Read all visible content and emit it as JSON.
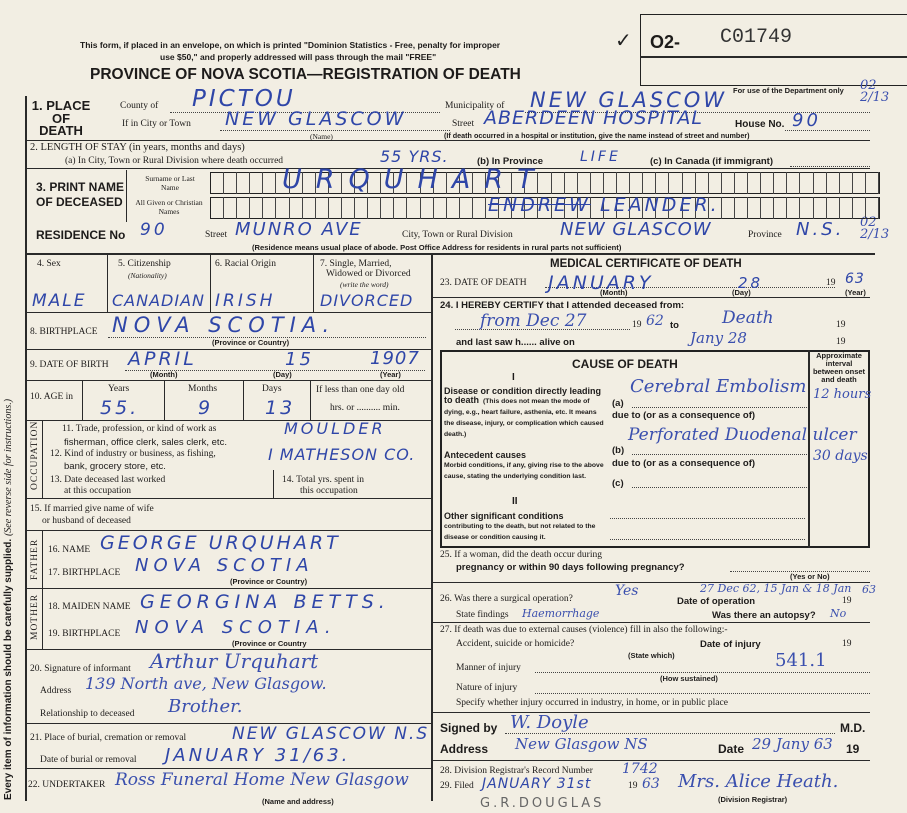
{
  "side_note": "Every item of information should be carefully supplied.",
  "side_note_2": "(See reverse side for instructions.)",
  "header": {
    "notice_line1": "This form, if placed in an envelope, on which is printed \"Dominion Statistics - Free, penalty for improper",
    "notice_line2": "use $50,\" and properly addressed will pass through the mail \"FREE\"",
    "title": "PROVINCE OF NOVA SCOTIA—REGISTRATION OF DEATH",
    "check_mark": "✓",
    "number_prefix": "O2-",
    "number": "C01749",
    "dept_use": "For use of the Department only",
    "dept_code_1": "02 2/13",
    "dept_code_2": "02 2/13"
  },
  "place_of_death": {
    "label": "1. PLACE OF DEATH",
    "county_label": "County of",
    "county": "PICTOU",
    "municipality_label": "Municipality of",
    "municipality": "NEW GLASCOW",
    "city_label": "If in City or Town",
    "city": "NEW GLASCOW",
    "name_note": "(Name)",
    "street_label": "Street",
    "street": "ABERDEEN HOSPITAL",
    "house_label": "House No.",
    "house": "90",
    "hospital_note": "(If death occurred in a hospital or institution, give the name instead of street and number)"
  },
  "length_of_stay": {
    "label": "2. LENGTH OF STAY (in years, months and days)",
    "a_label": "(a) In City, Town or Rural Division where death occurred",
    "a": "55 YRS.",
    "b_label": "(b) In Province",
    "b": "LIFE",
    "c_label": "(c) In Canada (if immigrant)"
  },
  "name": {
    "label1": "3. PRINT NAME",
    "label2": "OF DECEASED",
    "surname_label": "Surname or Last Name",
    "surname": "URQUHART",
    "given_label": "All Given or Christian Names",
    "given_struck": "ENDREW",
    "given": "LEANDER."
  },
  "residence": {
    "label": "RESIDENCE No",
    "no": "90",
    "street_label": "Street",
    "street": "MUNRO AVE",
    "city_label": "City, Town or Rural Division",
    "city": "NEW GLASCOW",
    "province_label": "Province",
    "province": "N.S.",
    "note": "(Residence means usual place of abode. Post Office Address for residents in rural parts not sufficient)"
  },
  "personal": {
    "sex_label": "4. Sex",
    "sex": "MALE",
    "citizenship_label": "5. Citizenship",
    "citizenship_sub": "(Nationality)",
    "citizenship": "CANADIAN",
    "racial_label": "6. Racial Origin",
    "racial": "IRISH",
    "marital_label1": "7. Single, Married,",
    "marital_label2": "Widowed or Divorced",
    "marital_label3": "(write the word)",
    "marital": "DIVORCED",
    "birthplace_label": "8. BIRTHPLACE",
    "birthplace": "NOVA  SCOTIA.",
    "birthplace_note": "(Province or Country)",
    "dob_label": "9. DATE OF BIRTH",
    "dob_month": "APRIL",
    "dob_day": "15",
    "dob_year": "1907",
    "month_note": "(Month)",
    "day_note": "(Day)",
    "year_note": "(Year)",
    "age_label": "10. AGE in",
    "years_label": "Years",
    "years": "55.",
    "months_label": "Months",
    "months": "9",
    "days_label": "Days",
    "days": "13",
    "less_label": "If less than one day old",
    "hrs_label": "hrs. or .......... min."
  },
  "occupation": {
    "side_label": "OCCUPATION",
    "q11a": "11. Trade, profession, or kind of work as",
    "q11b": "fisherman, office clerk, sales clerk, etc.",
    "a11": "MOULDER",
    "q12a": "12. Kind of industry or business, as fishing,",
    "q12b": "bank, grocery store, etc.",
    "a12": "I MATHESON CO.",
    "q13a": "13. Date deceased last worked",
    "q13b": "at this occupation",
    "q14a": "14. Total yrs. spent in",
    "q14b": "this occupation"
  },
  "spouse": {
    "q15a": "15. If married give name of wife",
    "q15b": "or husband of deceased"
  },
  "father": {
    "side_label": "FATHER",
    "name_label": "16. NAME",
    "name": "GEORGE  URQUHART",
    "birthplace_label": "17. BIRTHPLACE",
    "birthplace": "NOVA  SCOTIA",
    "note": "(Province or Country)"
  },
  "mother": {
    "side_label": "MOTHER",
    "name_label": "18. MAIDEN NAME",
    "name": "GEORGINA  BETTS.",
    "birthplace_label": "19. BIRTHPLACE",
    "birthplace": "NOVA  SCOTIA.",
    "note": "(Province or Country"
  },
  "informant": {
    "sig_label": "20. Signature of informant",
    "signature": "Arthur Urquhart",
    "address_label": "Address",
    "address": "139 North ave, New Glasgow.",
    "rel_label": "Relationship to deceased",
    "relationship": "Brother."
  },
  "burial": {
    "place_label": "21. Place of burial, cremation or removal",
    "place": "NEW GLASCOW N.S",
    "date_label": "Date of burial or removal",
    "date": "JANUARY 31/63.",
    "undertaker_label": "22. UNDERTAKER",
    "undertaker": "Ross Funeral Home New Glasgow",
    "undertaker_note": "(Name and address)"
  },
  "medical": {
    "title": "MEDICAL CERTIFICATE OF DEATH",
    "dod_label": "23. DATE OF DEATH",
    "dod_month": "JANUARY",
    "dod_day": "28",
    "dod_year": "63",
    "century": "19",
    "certify_label": "24. I HEREBY CERTIFY that I attended deceased from:",
    "from": "from Dec 27",
    "from_year": "62",
    "to_label": "to",
    "to": "Death",
    "last_saw_label": "and last saw h...... alive on",
    "last_saw": "Jany 28",
    "cause_title": "CAUSE OF DEATH",
    "part1": "I",
    "part2": "II",
    "interval_label": "Approximate interval between onset and death",
    "direct_label": "Disease or condition directly leading to death",
    "direct_note": "(This does not mean the mode of dying, e.g., heart failure, asthenia, etc. It means the disease, injury, or complication which caused death.)",
    "antecedent_label": "Antecedent causes",
    "antecedent_note": "Morbid conditions, if any, giving rise to the above cause, stating the underlying condition last.",
    "other_label": "Other significant conditions",
    "other_note": "contributing to the death, but not related to the disease or condition causing it.",
    "a_label": "(a)",
    "a": "Cerebral Embolism",
    "a_interval": "12 hours",
    "due_to": "due to (or as a consequence of)",
    "b_label": "(b)",
    "b": "Perforated Duodenal ulcer",
    "b_interval": "30 days",
    "c_label": "(c)"
  },
  "questions": {
    "q25a": "25. If a woman, did the death occur during",
    "q25b": "pregnancy or within 90 days following pregnancy?",
    "yes_no": "(Yes or No)",
    "q26": "26. Was there a surgical operation?",
    "operation": "Yes",
    "op_date_label": "Date of operation",
    "op_date": "27 Dec 62, 15 Jan & 18 Jan",
    "op_year": "63",
    "findings_label": "State findings",
    "findings": "Haemorrhage",
    "autopsy_label": "Was there an autopsy?",
    "autopsy": "No",
    "q27": "27. If death was due to external causes (violence) fill in also the following:-",
    "accident_label": "Accident, suicide or homicide?",
    "state_which": "(State which)",
    "injury_date_label": "Date of injury",
    "manner_label": "Manner of injury",
    "how_sustained": "(How sustained)",
    "code": "541.1",
    "nature_label": "Nature of injury",
    "specify_label": "Specify whether injury occurred in industry, in home, or in public place"
  },
  "signature": {
    "signed_label": "Signed by",
    "signed": "W. Doyle",
    "md": "M.D.",
    "address_label": "Address",
    "address": "New Glasgow NS",
    "date_label": "Date",
    "date": "29 Jany 63"
  },
  "registrar": {
    "q28": "28. Division Registrar's Record Number",
    "record": "1742",
    "q29": "29. Filed",
    "filed": "JANUARY 31st",
    "filed_year": "63",
    "registrar": "Mrs. Alice Heath.",
    "registrar_note": "(Division Registrar)",
    "stamp": "G.R.DOUGLAS"
  }
}
